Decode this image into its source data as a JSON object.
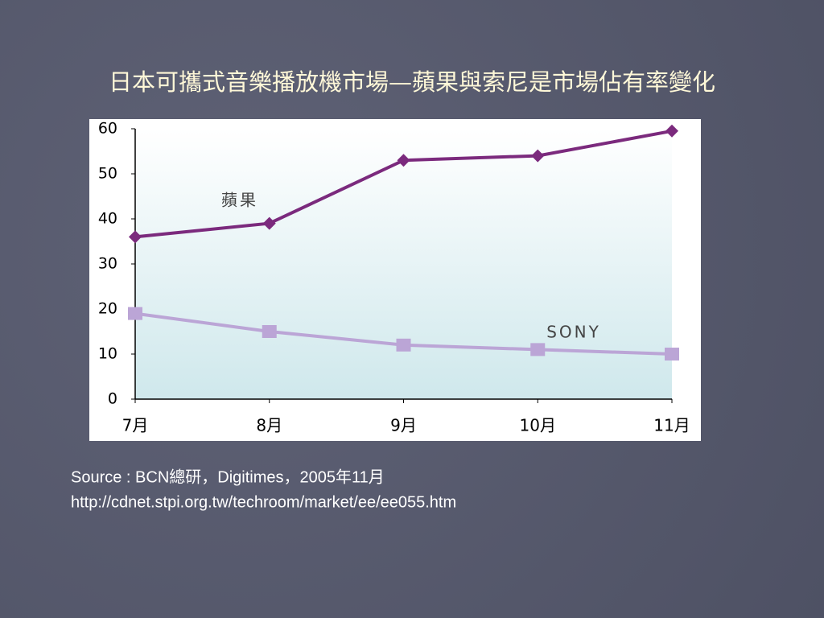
{
  "chart_data": {
    "type": "line",
    "title": "日本可攜式音樂播放機市場—蘋果與索尼是市場佔有率變化",
    "categories": [
      "7月",
      "8月",
      "9月",
      "10月",
      "11月"
    ],
    "series": [
      {
        "name": "蘋果",
        "color": "#7b2a7d",
        "marker": "diamond",
        "values": [
          36,
          39,
          53,
          54,
          59.5
        ]
      },
      {
        "name": "SONY",
        "color": "#bba5d6",
        "marker": "square",
        "values": [
          19,
          15,
          12,
          11,
          10
        ]
      }
    ],
    "ylim": [
      0,
      60
    ],
    "yticks": [
      0,
      10,
      20,
      30,
      40,
      50,
      60
    ],
    "grid": false
  },
  "source": [
    "Source : BCN總研，Digitimes，2005年11月",
    "http://cdnet.stpi.org.tw/techroom/market/ee/ee055.htm"
  ]
}
